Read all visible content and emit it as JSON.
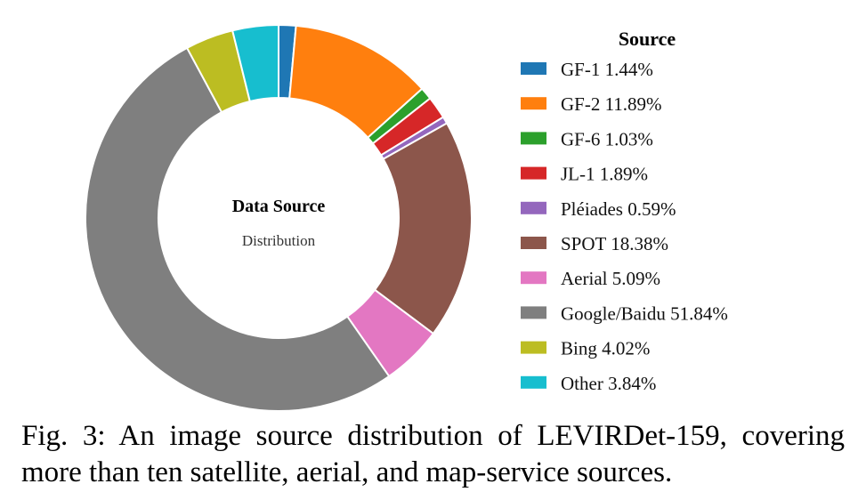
{
  "chart_data": {
    "type": "pie",
    "donut": true,
    "center_label": {
      "title": "Data Source",
      "subtitle": "Distribution"
    },
    "legend_title": "Source",
    "legend_position": "right",
    "categories": [
      "GF-1",
      "GF-2",
      "GF-6",
      "JL-1",
      "Pléiades",
      "SPOT",
      "Aerial",
      "Google/Baidu",
      "Bing",
      "Other"
    ],
    "values": [
      1.44,
      11.89,
      1.03,
      1.89,
      0.59,
      18.38,
      5.09,
      51.84,
      4.02,
      3.84
    ],
    "unit": "%",
    "legend_labels": [
      "GF-1 1.44%",
      "GF-2 11.89%",
      "GF-6 1.03%",
      "JL-1 1.89%",
      "Pléiades 0.59%",
      "SPOT 18.38%",
      "Aerial 5.09%",
      "Google/Baidu 51.84%",
      "Bing 4.02%",
      "Other 3.84%"
    ],
    "colors": [
      "#1f77b4",
      "#ff7f0e",
      "#2ca02c",
      "#d62728",
      "#9467bd",
      "#8c564b",
      "#e377c2",
      "#7f7f7f",
      "#bcbd22",
      "#17becf"
    ],
    "start": "top, clockwise"
  },
  "caption": {
    "line1": "Fig. 3: An image source distribution of LEVIRDet-159, covering",
    "line2": "more than ten satellite, aerial, and map-service sources."
  }
}
